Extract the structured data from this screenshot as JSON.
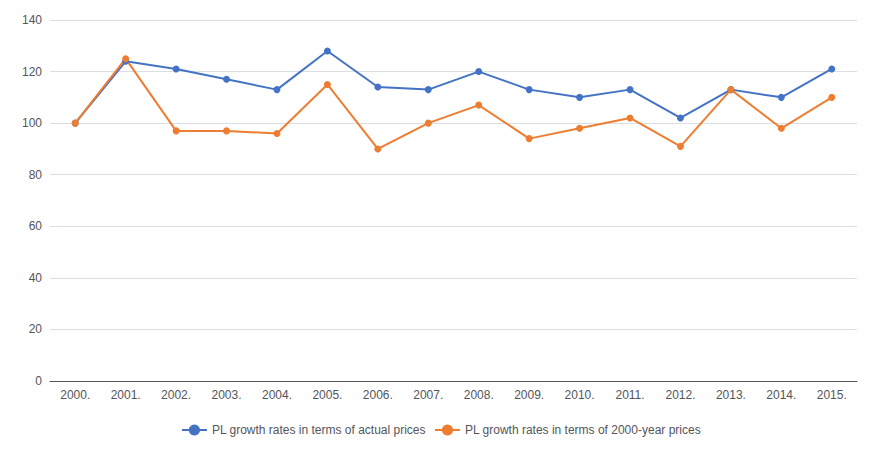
{
  "chart_data": {
    "type": "line",
    "categories": [
      "2000.",
      "2001.",
      "2002.",
      "2003.",
      "2004.",
      "2005.",
      "2006.",
      "2007.",
      "2008.",
      "2009.",
      "2010.",
      "2011.",
      "2012.",
      "2013.",
      "2014.",
      "2015."
    ],
    "series": [
      {
        "name": "PL growth rates in terms of actual prices",
        "color": "#4472C4",
        "marker": "circle",
        "values": [
          100,
          124,
          121,
          117,
          113,
          128,
          114,
          113,
          120,
          113,
          110,
          113,
          102,
          113,
          110,
          121
        ]
      },
      {
        "name": "PL growth rates in terms of 2000-year prices",
        "color": "#ED7D31",
        "marker": "circle",
        "values": [
          100,
          125,
          97,
          97,
          96,
          115,
          90,
          100,
          107,
          94,
          98,
          102,
          91,
          113,
          98,
          110
        ]
      }
    ],
    "ylim": [
      0,
      140
    ],
    "yticks": [
      0,
      20,
      40,
      60,
      80,
      100,
      120,
      140
    ],
    "grid": true,
    "legend": "bottom"
  }
}
